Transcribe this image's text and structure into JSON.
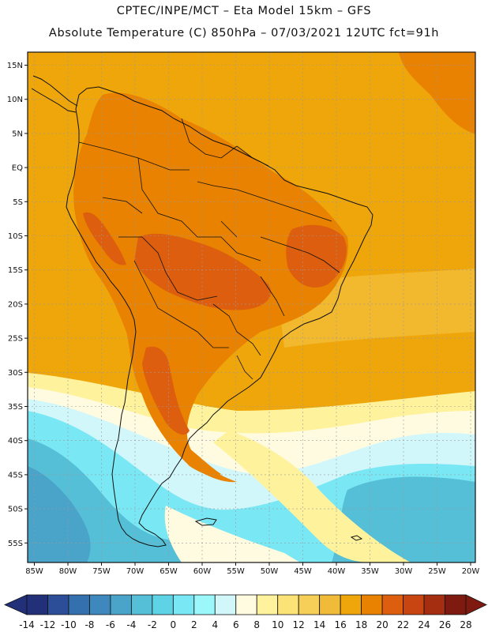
{
  "title": {
    "line1": "CPTEC/INPE/MCT –  Eta Model 15km – GFS",
    "line2": "Absolute Temperature (C) 850hPa – 07/03/2021 12UTC fct=91h"
  },
  "axes": {
    "lat_labels": [
      "15N",
      "10N",
      "5N",
      "EQ",
      "5S",
      "10S",
      "15S",
      "20S",
      "25S",
      "30S",
      "35S",
      "40S",
      "45S",
      "50S",
      "55S"
    ],
    "lon_labels": [
      "85W",
      "80W",
      "75W",
      "70W",
      "65W",
      "60W",
      "55W",
      "50W",
      "45W",
      "40W",
      "35W",
      "30W",
      "25W",
      "20W"
    ]
  },
  "colorbar": {
    "labels": [
      "-14",
      "-12",
      "-10",
      "-8",
      "-6",
      "-4",
      "-2",
      "0",
      "2",
      "4",
      "6",
      "8",
      "10",
      "12",
      "14",
      "16",
      "18",
      "20",
      "22",
      "24",
      "26",
      "28"
    ],
    "colors": [
      "#22307a",
      "#2c4e99",
      "#3470ad",
      "#3e88bd",
      "#4aa3c9",
      "#55bfd8",
      "#5fd3e6",
      "#7ae8f4",
      "#9cf7fb",
      "#d2f7fb",
      "#fffbe0",
      "#fff29c",
      "#fbe377",
      "#f6cf58",
      "#f1bb3a",
      "#eea60b",
      "#e98200",
      "#dc5e0e",
      "#c84410",
      "#a52d10",
      "#7e1a10"
    ],
    "low_color": "#22307a",
    "high_color": "#7e1a10"
  },
  "map_colors": {
    "ocean_bg": "#eea60b",
    "pale": "#fff29c",
    "cream": "#fffbe0",
    "light_cyan": "#d2f7fb",
    "cyan": "#7ae8f4",
    "blue": "#55bfd8",
    "mid_blue": "#4aa3c9",
    "orange": "#e98200",
    "dark_orange": "#dc5e0e",
    "yellow_orange": "#f6cf58",
    "coast": "#111111",
    "grid": "#9a9a9a"
  }
}
